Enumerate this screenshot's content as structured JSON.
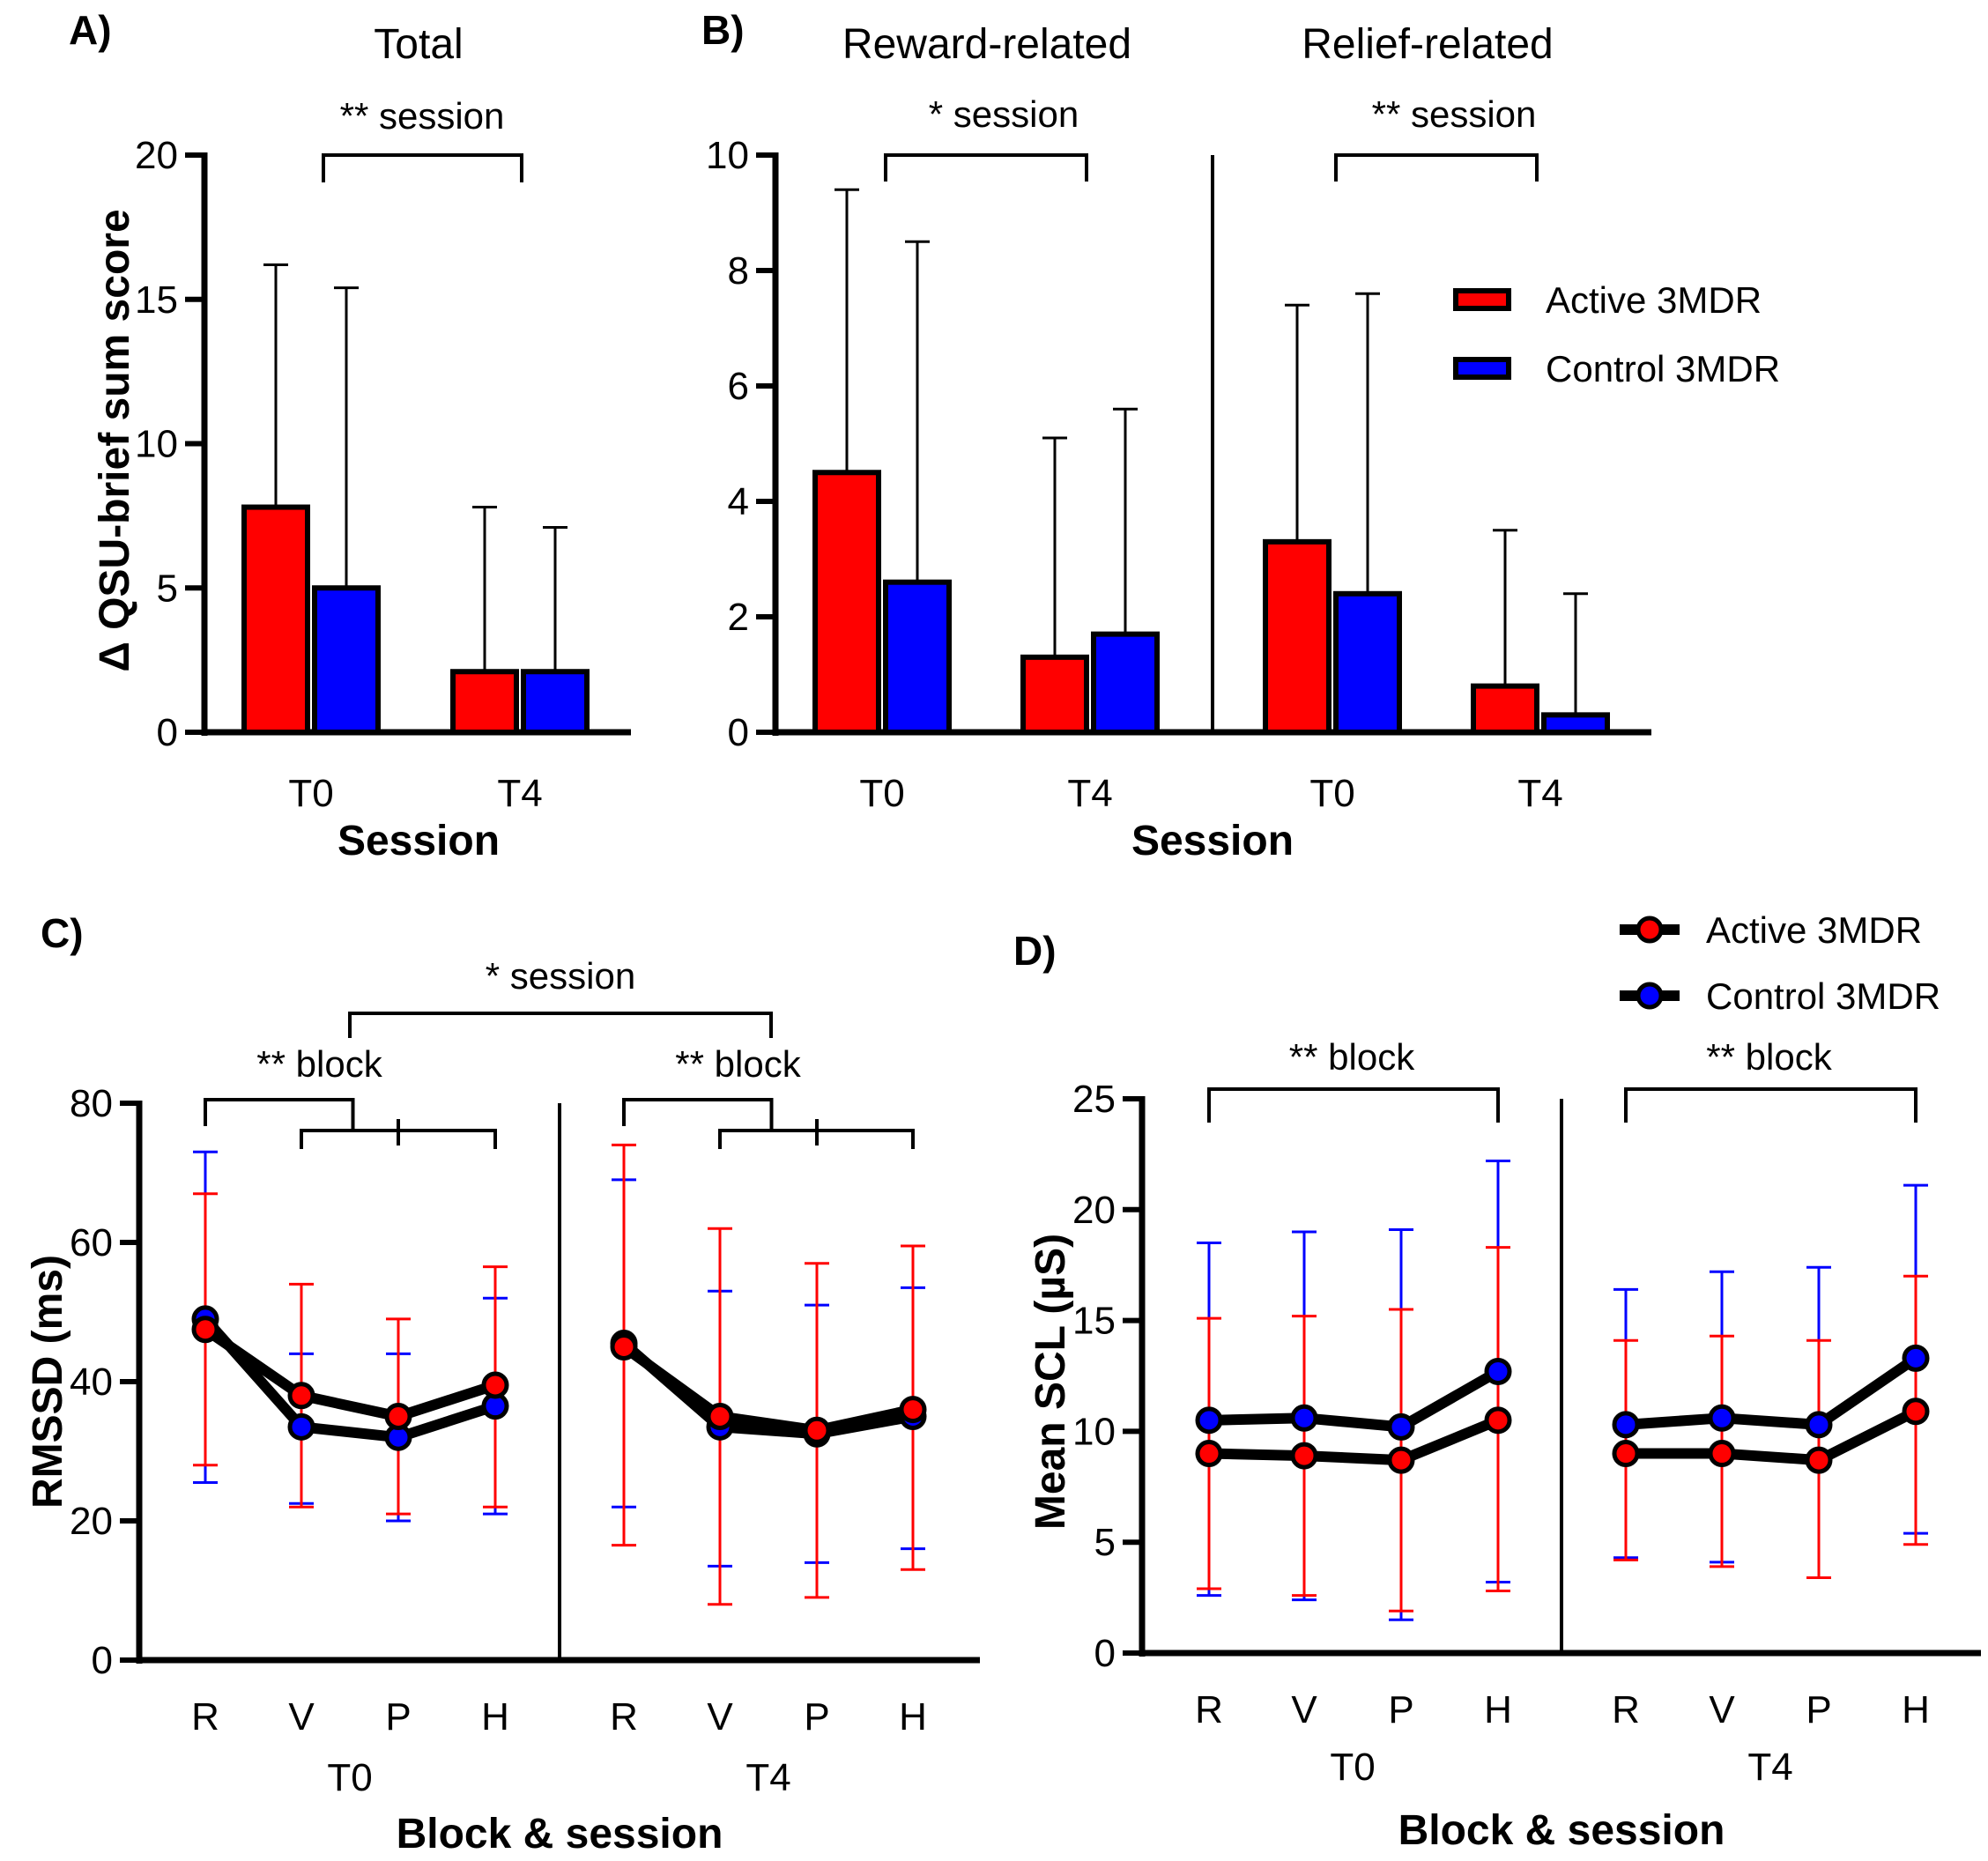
{
  "colors": {
    "active": "#ff0000",
    "control": "#0000ff",
    "axis": "#000000"
  },
  "chart_data": [
    {
      "panel": "A)",
      "type": "bar",
      "title": "Total",
      "ylabel": "Δ QSU-brief sum score",
      "xlabel": "Session",
      "ylim": [
        0,
        20
      ],
      "yticks": [
        0,
        5,
        10,
        15,
        20
      ],
      "categories": [
        "T0",
        "T4"
      ],
      "series": [
        {
          "name": "Active 3MDR",
          "values": [
            7.8,
            2.1
          ],
          "err_upper": [
            16.2,
            7.8
          ]
        },
        {
          "name": "Control 3MDR",
          "values": [
            5.0,
            2.1
          ],
          "err_upper": [
            15.4,
            7.1
          ]
        }
      ],
      "annotations": [
        {
          "label": "** session",
          "from": "T0",
          "to": "T4"
        }
      ]
    },
    {
      "panel": "B)",
      "type": "bar",
      "xlabel": "Session",
      "ylim": [
        0,
        10
      ],
      "yticks": [
        0,
        2,
        4,
        6,
        8,
        10
      ],
      "legend": {
        "position": "top-right",
        "entries": [
          "Active 3MDR",
          "Control 3MDR"
        ]
      },
      "groups": [
        {
          "title": "Reward-related",
          "categories": [
            "T0",
            "T4"
          ],
          "series": [
            {
              "name": "Active 3MDR",
              "values": [
                4.5,
                1.3
              ],
              "err_upper": [
                9.4,
                5.1
              ]
            },
            {
              "name": "Control 3MDR",
              "values": [
                2.6,
                1.7
              ],
              "err_upper": [
                8.5,
                5.6
              ]
            }
          ],
          "annotations": [
            {
              "label": "* session",
              "from": "T0",
              "to": "T4"
            }
          ]
        },
        {
          "title": "Relief-related",
          "categories": [
            "T0",
            "T4"
          ],
          "series": [
            {
              "name": "Active 3MDR",
              "values": [
                3.3,
                0.8
              ],
              "err_upper": [
                7.4,
                3.5
              ]
            },
            {
              "name": "Control 3MDR",
              "values": [
                2.4,
                0.3
              ],
              "err_upper": [
                7.6,
                2.4
              ]
            }
          ],
          "annotations": [
            {
              "label": "** session",
              "from": "T0",
              "to": "T4"
            }
          ]
        }
      ]
    },
    {
      "panel": "C)",
      "type": "line",
      "ylabel": "RMSSD (ms)",
      "xlabel": "Block & session",
      "ylim": [
        0,
        80
      ],
      "yticks": [
        0,
        20,
        40,
        60,
        80
      ],
      "annotations": [
        {
          "label": "* session",
          "from": "T0",
          "to": "T4"
        }
      ],
      "groups": [
        {
          "session": "T0",
          "blocks": [
            "R",
            "V",
            "P",
            "H"
          ],
          "series": [
            {
              "name": "Active 3MDR",
              "values": [
                47.5,
                38.0,
                35.0,
                39.5
              ],
              "err_low": [
                28,
                22,
                21,
                22
              ],
              "err_high": [
                67,
                54,
                49,
                56.5
              ]
            },
            {
              "name": "Control 3MDR",
              "values": [
                49.0,
                33.5,
                32.0,
                36.5
              ],
              "err_low": [
                25.5,
                22.5,
                20,
                21
              ],
              "err_high": [
                73,
                44,
                44,
                52
              ]
            }
          ],
          "annotations": [
            {
              "label": "** block"
            }
          ]
        },
        {
          "session": "T4",
          "blocks": [
            "R",
            "V",
            "P",
            "H"
          ],
          "series": [
            {
              "name": "Active 3MDR",
              "values": [
                45.0,
                35.0,
                33.0,
                36.0
              ],
              "err_low": [
                16.5,
                8,
                9,
                13
              ],
              "err_high": [
                74,
                62,
                57,
                59.5
              ]
            },
            {
              "name": "Control 3MDR",
              "values": [
                45.5,
                33.5,
                32.5,
                35.0
              ],
              "err_low": [
                22,
                13.5,
                14,
                16
              ],
              "err_high": [
                69,
                53,
                51,
                53.5
              ]
            }
          ],
          "annotations": [
            {
              "label": "** block"
            }
          ]
        }
      ]
    },
    {
      "panel": "D)",
      "type": "line",
      "ylabel": "Mean SCL (µS)",
      "xlabel": "Block & session",
      "ylim": [
        0,
        25
      ],
      "yticks": [
        0,
        5,
        10,
        15,
        20,
        25
      ],
      "legend": {
        "position": "top-right",
        "entries": [
          "Active 3MDR",
          "Control 3MDR"
        ]
      },
      "groups": [
        {
          "session": "T0",
          "blocks": [
            "R",
            "V",
            "P",
            "H"
          ],
          "series": [
            {
              "name": "Active 3MDR",
              "values": [
                9.0,
                8.9,
                8.7,
                10.5
              ],
              "err_low": [
                2.9,
                2.6,
                1.9,
                2.8
              ],
              "err_high": [
                15.1,
                15.2,
                15.5,
                18.3
              ]
            },
            {
              "name": "Control 3MDR",
              "values": [
                10.5,
                10.6,
                10.2,
                12.7
              ],
              "err_low": [
                2.6,
                2.4,
                1.5,
                3.2
              ],
              "err_high": [
                18.5,
                19.0,
                19.1,
                22.2
              ]
            }
          ],
          "annotations": [
            {
              "label": "** block",
              "from": "R",
              "to": "H"
            }
          ]
        },
        {
          "session": "T4",
          "blocks": [
            "R",
            "V",
            "P",
            "H"
          ],
          "series": [
            {
              "name": "Active 3MDR",
              "values": [
                9.0,
                9.0,
                8.7,
                10.9
              ],
              "err_low": [
                4.2,
                3.9,
                3.4,
                4.9
              ],
              "err_high": [
                14.1,
                14.3,
                14.1,
                17.0
              ]
            },
            {
              "name": "Control 3MDR",
              "values": [
                10.3,
                10.6,
                10.3,
                13.3
              ],
              "err_low": [
                4.3,
                4.1,
                3.4,
                5.4
              ],
              "err_high": [
                16.4,
                17.2,
                17.4,
                21.1
              ]
            }
          ],
          "annotations": [
            {
              "label": "** block",
              "from": "R",
              "to": "H"
            }
          ]
        }
      ]
    }
  ]
}
